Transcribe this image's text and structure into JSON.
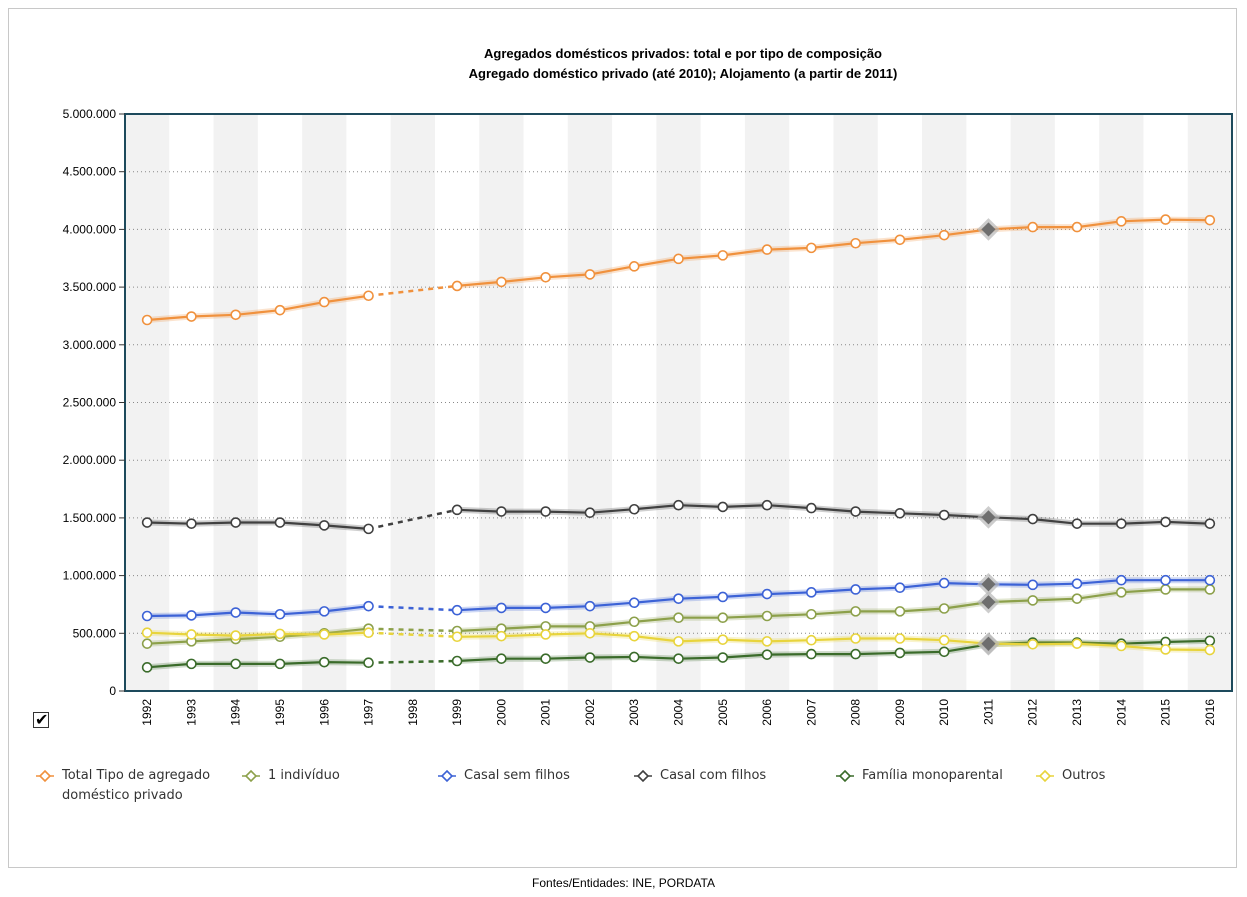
{
  "chart_data": {
    "type": "line",
    "title": "Agregados domésticos privados: total e por tipo de composição",
    "subtitle": "Agregado doméstico privado (até 2010); Alojamento (a partir de 2011)",
    "categories": [
      "1992",
      "1993",
      "1994",
      "1995",
      "1996",
      "1997",
      "1998",
      "1999",
      "2000",
      "2001",
      "2002",
      "2003",
      "2004",
      "2005",
      "2006",
      "2007",
      "2008",
      "2009",
      "2010",
      "2011",
      "2012",
      "2013",
      "2014",
      "2015",
      "2016"
    ],
    "ylim": [
      0,
      5000000
    ],
    "yticks": [
      0,
      500000,
      1000000,
      1500000,
      2000000,
      2500000,
      3000000,
      3500000,
      4000000,
      4500000,
      5000000
    ],
    "ytick_labels": [
      "0",
      "500.000",
      "1.000.000",
      "1.500.000",
      "2.000.000",
      "2.500.000",
      "3.000.000",
      "3.500.000",
      "4.000.000",
      "4.500.000",
      "5.000.000"
    ],
    "grid": true,
    "legend_position": "bottom",
    "break_year": "2011",
    "series": [
      {
        "name": "Total Tipo de agregado doméstico privado",
        "color": "#f0913d",
        "values": [
          3215000,
          3245000,
          3260000,
          3300000,
          3370000,
          3425000,
          null,
          3510000,
          3545000,
          3585000,
          3610000,
          3680000,
          3745000,
          3775000,
          3825000,
          3840000,
          3880000,
          3910000,
          3950000,
          4000000,
          4020000,
          4020000,
          4070000,
          4085000,
          4080000
        ]
      },
      {
        "name": "1 indivíduo",
        "color": "#8ca04a",
        "values": [
          410000,
          430000,
          450000,
          470000,
          500000,
          540000,
          null,
          520000,
          540000,
          560000,
          560000,
          600000,
          635000,
          635000,
          650000,
          665000,
          690000,
          690000,
          715000,
          770000,
          785000,
          800000,
          855000,
          880000,
          880000
        ]
      },
      {
        "name": "Casal sem filhos",
        "color": "#3c62d6",
        "values": [
          650000,
          655000,
          680000,
          665000,
          690000,
          735000,
          null,
          700000,
          720000,
          720000,
          735000,
          765000,
          800000,
          815000,
          840000,
          855000,
          880000,
          895000,
          935000,
          925000,
          920000,
          930000,
          960000,
          960000,
          960000
        ]
      },
      {
        "name": "Casal com filhos",
        "color": "#404040",
        "values": [
          1460000,
          1450000,
          1460000,
          1460000,
          1435000,
          1405000,
          null,
          1570000,
          1555000,
          1555000,
          1545000,
          1575000,
          1610000,
          1595000,
          1610000,
          1585000,
          1555000,
          1540000,
          1525000,
          1505000,
          1490000,
          1450000,
          1450000,
          1465000,
          1450000
        ]
      },
      {
        "name": "Família monoparental",
        "color": "#3a6b2a",
        "values": [
          205000,
          235000,
          235000,
          235000,
          250000,
          245000,
          null,
          260000,
          280000,
          280000,
          290000,
          295000,
          280000,
          290000,
          315000,
          320000,
          320000,
          330000,
          340000,
          405000,
          420000,
          420000,
          410000,
          425000,
          435000
        ]
      },
      {
        "name": "Outros",
        "color": "#e8d43c",
        "values": [
          505000,
          490000,
          480000,
          495000,
          490000,
          505000,
          null,
          470000,
          475000,
          490000,
          500000,
          475000,
          430000,
          445000,
          430000,
          440000,
          455000,
          455000,
          440000,
          410000,
          405000,
          410000,
          390000,
          360000,
          355000
        ]
      }
    ]
  },
  "legend": {
    "items": [
      {
        "label": "Total Tipo de agregado doméstico privado",
        "color": "#f0913d"
      },
      {
        "label": "1 indivíduo",
        "color": "#8ca04a"
      },
      {
        "label": "Casal sem filhos",
        "color": "#3c62d6"
      },
      {
        "label": "Casal com filhos",
        "color": "#404040"
      },
      {
        "label": "Família monoparental",
        "color": "#3a6b2a"
      },
      {
        "label": "Outros",
        "color": "#e8d43c"
      }
    ]
  },
  "checkbox": {
    "checked": true,
    "icon": "check-icon",
    "mark": "✔"
  },
  "footer": {
    "source": "Fontes/Entidades: INE, PORDATA"
  }
}
